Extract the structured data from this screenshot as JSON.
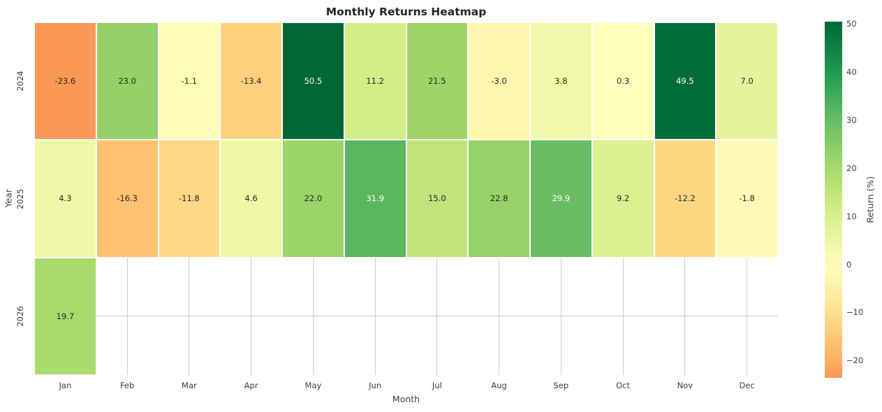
{
  "title": "Monthly Returns Heatmap",
  "colors": {
    "background": "#ffffff",
    "grid": "#cccccc",
    "cell_border": "#ffffff",
    "title_text": "#262626",
    "tick_text": "#3c3c3c",
    "annot_dark": "#262626",
    "annot_light": "#ffffff"
  },
  "chart_data": {
    "type": "heatmap",
    "title": "Monthly Returns Heatmap",
    "xlabel": "Month",
    "ylabel": "Year",
    "colorbar_label": "Return (%)",
    "x_categories": [
      "Jan",
      "Feb",
      "Mar",
      "Apr",
      "May",
      "Jun",
      "Jul",
      "Aug",
      "Sep",
      "Oct",
      "Nov",
      "Dec"
    ],
    "y_categories": [
      "2024",
      "2025",
      "2026"
    ],
    "values": [
      [
        -23.6,
        23.0,
        -1.1,
        -13.4,
        50.5,
        11.2,
        21.5,
        -3.0,
        3.8,
        0.3,
        49.5,
        7.0
      ],
      [
        4.3,
        -16.3,
        -11.8,
        4.6,
        22.0,
        31.9,
        15.0,
        22.8,
        29.9,
        9.2,
        -12.2,
        -1.8
      ],
      [
        19.7,
        null,
        null,
        null,
        null,
        null,
        null,
        null,
        null,
        null,
        null,
        null
      ]
    ],
    "value_decimals": 1,
    "colormap": "RdYlGn",
    "colormap_anchors": [
      [
        165,
        0,
        38
      ],
      [
        215,
        48,
        39
      ],
      [
        244,
        109,
        67
      ],
      [
        253,
        174,
        97
      ],
      [
        254,
        224,
        139
      ],
      [
        255,
        255,
        191
      ],
      [
        217,
        239,
        139
      ],
      [
        166,
        217,
        106
      ],
      [
        102,
        189,
        99
      ],
      [
        26,
        152,
        80
      ],
      [
        0,
        104,
        55
      ]
    ],
    "center": 0,
    "vmin": -23.6,
    "vmax": 50.5,
    "grid": true,
    "colorbar_ticks": [
      {
        "value": 50,
        "label": "50"
      },
      {
        "value": 40,
        "label": "40"
      },
      {
        "value": 30,
        "label": "30"
      },
      {
        "value": 20,
        "label": "20"
      },
      {
        "value": 10,
        "label": "10"
      },
      {
        "value": 0,
        "label": "0"
      },
      {
        "value": -10,
        "label": "−10"
      },
      {
        "value": -20,
        "label": "−20"
      }
    ]
  }
}
